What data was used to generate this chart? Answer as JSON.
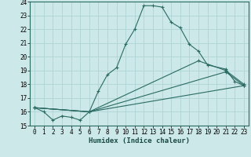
{
  "title": "",
  "xlabel": "Humidex (Indice chaleur)",
  "ylabel": "",
  "bg_color": "#cce8e8",
  "line_color": "#2a6b62",
  "xlim": [
    -0.5,
    23.5
  ],
  "ylim": [
    15,
    24
  ],
  "xticks": [
    0,
    1,
    2,
    3,
    4,
    5,
    6,
    7,
    8,
    9,
    10,
    11,
    12,
    13,
    14,
    15,
    16,
    17,
    18,
    19,
    20,
    21,
    22,
    23
  ],
  "yticks": [
    15,
    16,
    17,
    18,
    19,
    20,
    21,
    22,
    23,
    24
  ],
  "lines": [
    {
      "x": [
        0,
        1,
        2,
        3,
        4,
        5,
        6,
        7,
        8,
        9,
        10,
        11,
        12,
        13,
        14,
        15,
        16,
        17,
        18,
        19,
        21,
        22,
        23
      ],
      "y": [
        16.3,
        16.0,
        15.4,
        15.7,
        15.6,
        15.4,
        16.0,
        17.5,
        18.7,
        19.2,
        20.9,
        22.0,
        23.7,
        23.7,
        23.6,
        22.5,
        22.1,
        20.9,
        20.4,
        19.4,
        19.1,
        18.2,
        17.9
      ]
    },
    {
      "x": [
        0,
        6,
        18,
        21,
        23
      ],
      "y": [
        16.3,
        16.0,
        19.7,
        19.0,
        18.0
      ]
    },
    {
      "x": [
        0,
        6,
        21,
        23
      ],
      "y": [
        16.3,
        16.0,
        18.9,
        17.9
      ]
    },
    {
      "x": [
        0,
        6,
        23
      ],
      "y": [
        16.3,
        16.0,
        17.9
      ]
    }
  ],
  "grid_color": "#afd4d4",
  "marker": "+"
}
